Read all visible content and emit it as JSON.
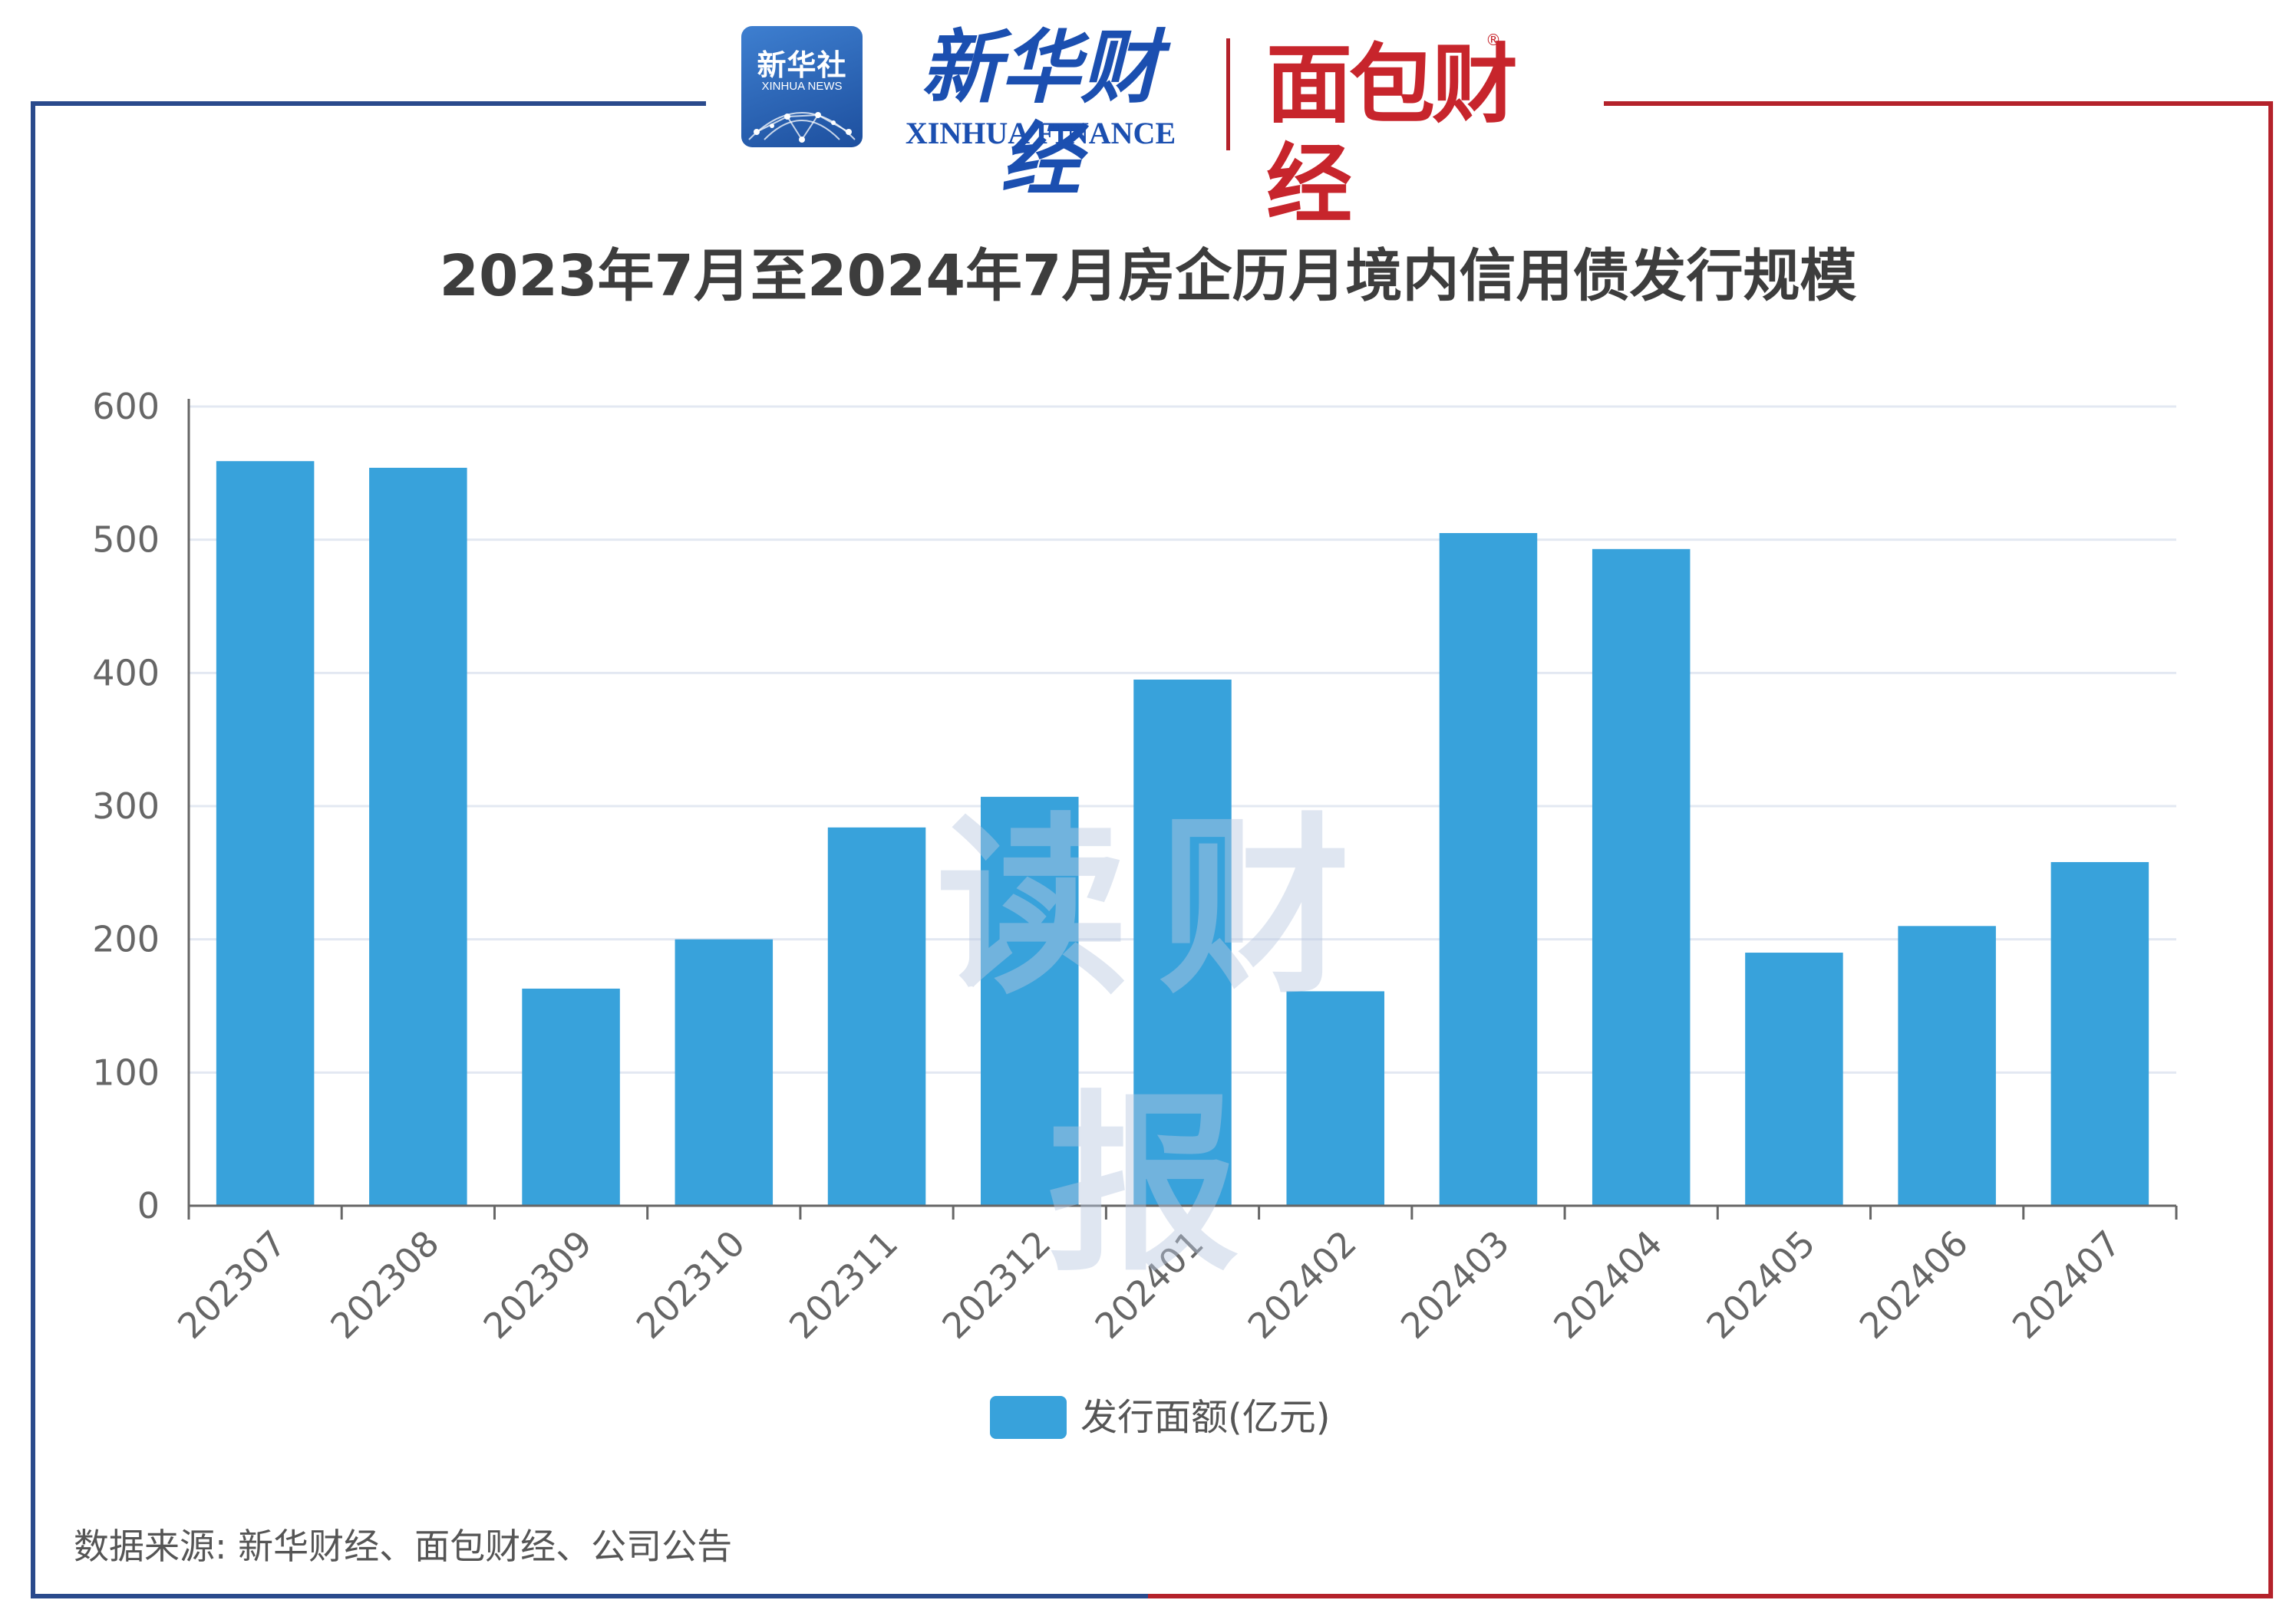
{
  "header": {
    "xinhua_badge_cn": "新华社",
    "xinhua_badge_en": "XINHUA NEWS",
    "xinhua_finance_cn": "新华财经",
    "xinhua_finance_en": "XINHUA FINANCE",
    "mianbao_logo": "面包财经",
    "registered_mark": "®"
  },
  "watermark": "读财报",
  "source": "数据来源: 新华财经、面包财经、公司公告",
  "colors": {
    "bar": "#38a2db",
    "frame_left": "#2a4a8c",
    "frame_right": "#b4222b",
    "grid": "#e3e8f2",
    "axis": "#666666"
  },
  "chart_data": {
    "type": "bar",
    "title": "2023年7月至2024年7月房企历月境内信用债发行规模",
    "categories": [
      "202307",
      "202308",
      "202309",
      "202310",
      "202311",
      "202312",
      "202401",
      "202402",
      "202403",
      "202404",
      "202405",
      "202406",
      "202407"
    ],
    "series": [
      {
        "name": "发行面额(亿元)",
        "values": [
          559,
          554,
          163,
          200,
          284,
          307,
          395,
          161,
          505,
          493,
          190,
          210,
          258
        ]
      }
    ],
    "yticks": [
      "0",
      "100",
      "200",
      "300",
      "400",
      "500",
      "600"
    ],
    "ylim": [
      0,
      600
    ],
    "xlabel": "",
    "ylabel": "",
    "grid": true,
    "legend_position": "bottom-center",
    "xtick_rotation": "diagonal"
  }
}
